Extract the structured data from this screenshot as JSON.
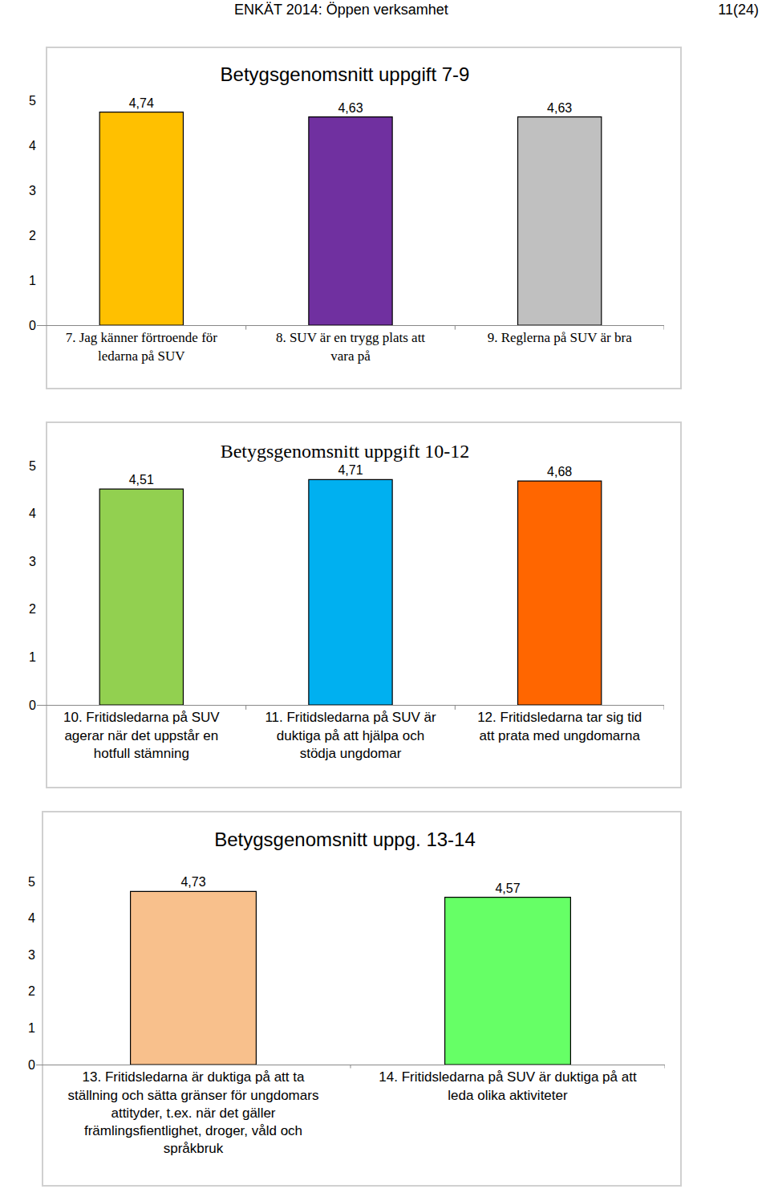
{
  "header": {
    "title": "ENKÄT 2014: Öppen verksamhet",
    "page": "11(24)"
  },
  "chart_data": [
    {
      "type": "bar",
      "title": "Betygsgenomsnitt uppgift 7-9",
      "categories": [
        "7. Jag känner förtroende för ledarna på SUV",
        "8. SUV är en trygg plats att vara på",
        "9. Reglerna på SUV är bra"
      ],
      "values": [
        4.74,
        4.63,
        4.63
      ],
      "value_labels": [
        "4,74",
        "4,63",
        "4,63"
      ],
      "colors": [
        "#FFC000",
        "#7030A0",
        "#C0C0C0"
      ],
      "ylim": [
        0,
        5
      ],
      "yticks": [
        0,
        1,
        2,
        3,
        4,
        5
      ],
      "grid": false,
      "data_labels": true
    },
    {
      "type": "bar",
      "title": "Betygsgenomsnitt uppgift 10-12",
      "categories": [
        "10. Fritidsledarna på SUV agerar när det uppstår en hotfull stämning",
        "11. Fritidsledarna på SUV är duktiga på att hjälpa och stödja ungdomar",
        "12. Fritidsledarna tar sig tid att prata med ungdomarna"
      ],
      "values": [
        4.51,
        4.71,
        4.68
      ],
      "value_labels": [
        "4,51",
        "4,71",
        "4,68"
      ],
      "colors": [
        "#92D050",
        "#00B0F0",
        "#FF6600"
      ],
      "ylim": [
        0,
        5
      ],
      "yticks": [
        0,
        1,
        2,
        3,
        4,
        5
      ],
      "grid": false,
      "data_labels": true
    },
    {
      "type": "bar",
      "title": "Betygsgenomsnitt uppg. 13-14",
      "categories": [
        "13. Fritidsledarna är duktiga på att ta ställning och sätta gränser för ungdomars attityder, t.ex. när det gäller främlingsfientlighet, droger, våld och språkbruk",
        "14. Fritidsledarna på SUV är duktiga på att leda olika aktiviteter"
      ],
      "values": [
        4.73,
        4.57
      ],
      "value_labels": [
        "4,73",
        "4,57"
      ],
      "colors": [
        "#F8C08C",
        "#66FF66"
      ],
      "ylim": [
        0,
        5
      ],
      "yticks": [
        0,
        1,
        2,
        3,
        4,
        5
      ],
      "grid": false,
      "data_labels": true
    }
  ]
}
